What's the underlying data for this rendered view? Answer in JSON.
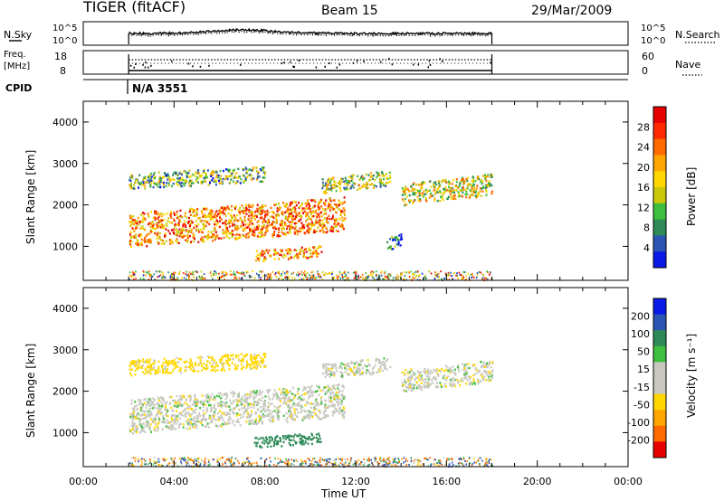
{
  "header": {
    "radar": "TIGER (fitACF)",
    "beam": "Beam 15",
    "date": "29/Mar/2009"
  },
  "noise_panel": {
    "left_label": "N.Sky",
    "left_ticks": [
      "10^5",
      "10^0"
    ],
    "right_ticks": [
      "10^5",
      "10^0"
    ],
    "right_label": "N.Search"
  },
  "freq_panel": {
    "left_label_line1": "Freq.",
    "left_label_line2": "[MHz]",
    "left_ticks": [
      "18",
      "8"
    ],
    "right_ticks": [
      "60",
      "0"
    ],
    "right_label": "Nave"
  },
  "cpid": {
    "label": "CPID",
    "value": "N/A 3551"
  },
  "colors": {
    "power": [
      "#0a1ae6",
      "#2b55b3",
      "#2e8b57",
      "#3fbf3f",
      "#c9c90a",
      "#ffd700",
      "#ffa500",
      "#ff6a00",
      "#ff2a00",
      "#e60000"
    ],
    "velocity": [
      "#e60000",
      "#ff6a00",
      "#ffa500",
      "#ffd700",
      "#c8c8c0",
      "#c8c8c0",
      "#3fbf3f",
      "#2e8b57",
      "#2b55b3",
      "#0a1ae6"
    ]
  },
  "chart_data": [
    {
      "type": "heatmap",
      "panel": "power",
      "xlabel": "",
      "ylabel": "Slant Range [km]",
      "xlim_hours": [
        0,
        24
      ],
      "ylim_km": [
        180,
        4500
      ],
      "yticks": [
        "1000",
        "2000",
        "3000",
        "4000"
      ],
      "colorbar": {
        "label": "Power [dB]",
        "ticks": [
          "28",
          "24",
          "20",
          "16",
          "12",
          "8",
          "4"
        ],
        "range": [
          0,
          30
        ]
      },
      "data_window_hours": [
        2,
        18
      ],
      "echo_regions": [
        {
          "t_start": 2.0,
          "t_end": 11.5,
          "range_start_km": 1000,
          "range_end_km": 2100,
          "power_db": 26
        },
        {
          "t_start": 7.5,
          "t_end": 10.5,
          "range_start_km": 650,
          "range_end_km": 1000,
          "power_db": 26
        },
        {
          "t_start": 2.0,
          "t_end": 8.0,
          "range_start_km": 2400,
          "range_end_km": 2900,
          "power_db": 16
        },
        {
          "t_start": 10.5,
          "t_end": 13.5,
          "range_start_km": 2300,
          "range_end_km": 2800,
          "power_db": 18
        },
        {
          "t_start": 14.0,
          "t_end": 18.0,
          "range_start_km": 2000,
          "range_end_km": 2700,
          "power_db": 20
        },
        {
          "t_start": 13.3,
          "t_end": 14.0,
          "range_start_km": 900,
          "range_end_km": 1300,
          "power_db": 10
        }
      ]
    },
    {
      "type": "heatmap",
      "panel": "velocity",
      "xlabel": "Time UT",
      "ylabel": "Slant Range [km]",
      "xlim_hours": [
        0,
        24
      ],
      "ylim_km": [
        180,
        4500
      ],
      "yticks": [
        "1000",
        "2000",
        "3000",
        "4000"
      ],
      "xticks": [
        "00:00",
        "04:00",
        "08:00",
        "12:00",
        "16:00",
        "20:00",
        "00:00"
      ],
      "colorbar": {
        "label": "Velocity [m s⁻¹]",
        "ticks": [
          "200",
          "100",
          "50",
          "15",
          "-15",
          "-50",
          "-100",
          "-200"
        ],
        "range": [
          -250,
          250
        ]
      },
      "data_window_hours": [
        2,
        18
      ],
      "echo_regions": [
        {
          "t_start": 2.0,
          "t_end": 11.5,
          "range_start_km": 1000,
          "range_end_km": 2100,
          "velocity_ms": 0
        },
        {
          "t_start": 7.5,
          "t_end": 10.5,
          "range_start_km": 650,
          "range_end_km": 1000,
          "velocity_ms": 70
        },
        {
          "t_start": 2.0,
          "t_end": 8.0,
          "range_start_km": 2400,
          "range_end_km": 2900,
          "velocity_ms": -30
        },
        {
          "t_start": 10.5,
          "t_end": 13.5,
          "range_start_km": 2300,
          "range_end_km": 2800,
          "velocity_ms": 0
        },
        {
          "t_start": 14.0,
          "t_end": 18.0,
          "range_start_km": 2000,
          "range_end_km": 2700,
          "velocity_ms": 0
        }
      ]
    }
  ]
}
